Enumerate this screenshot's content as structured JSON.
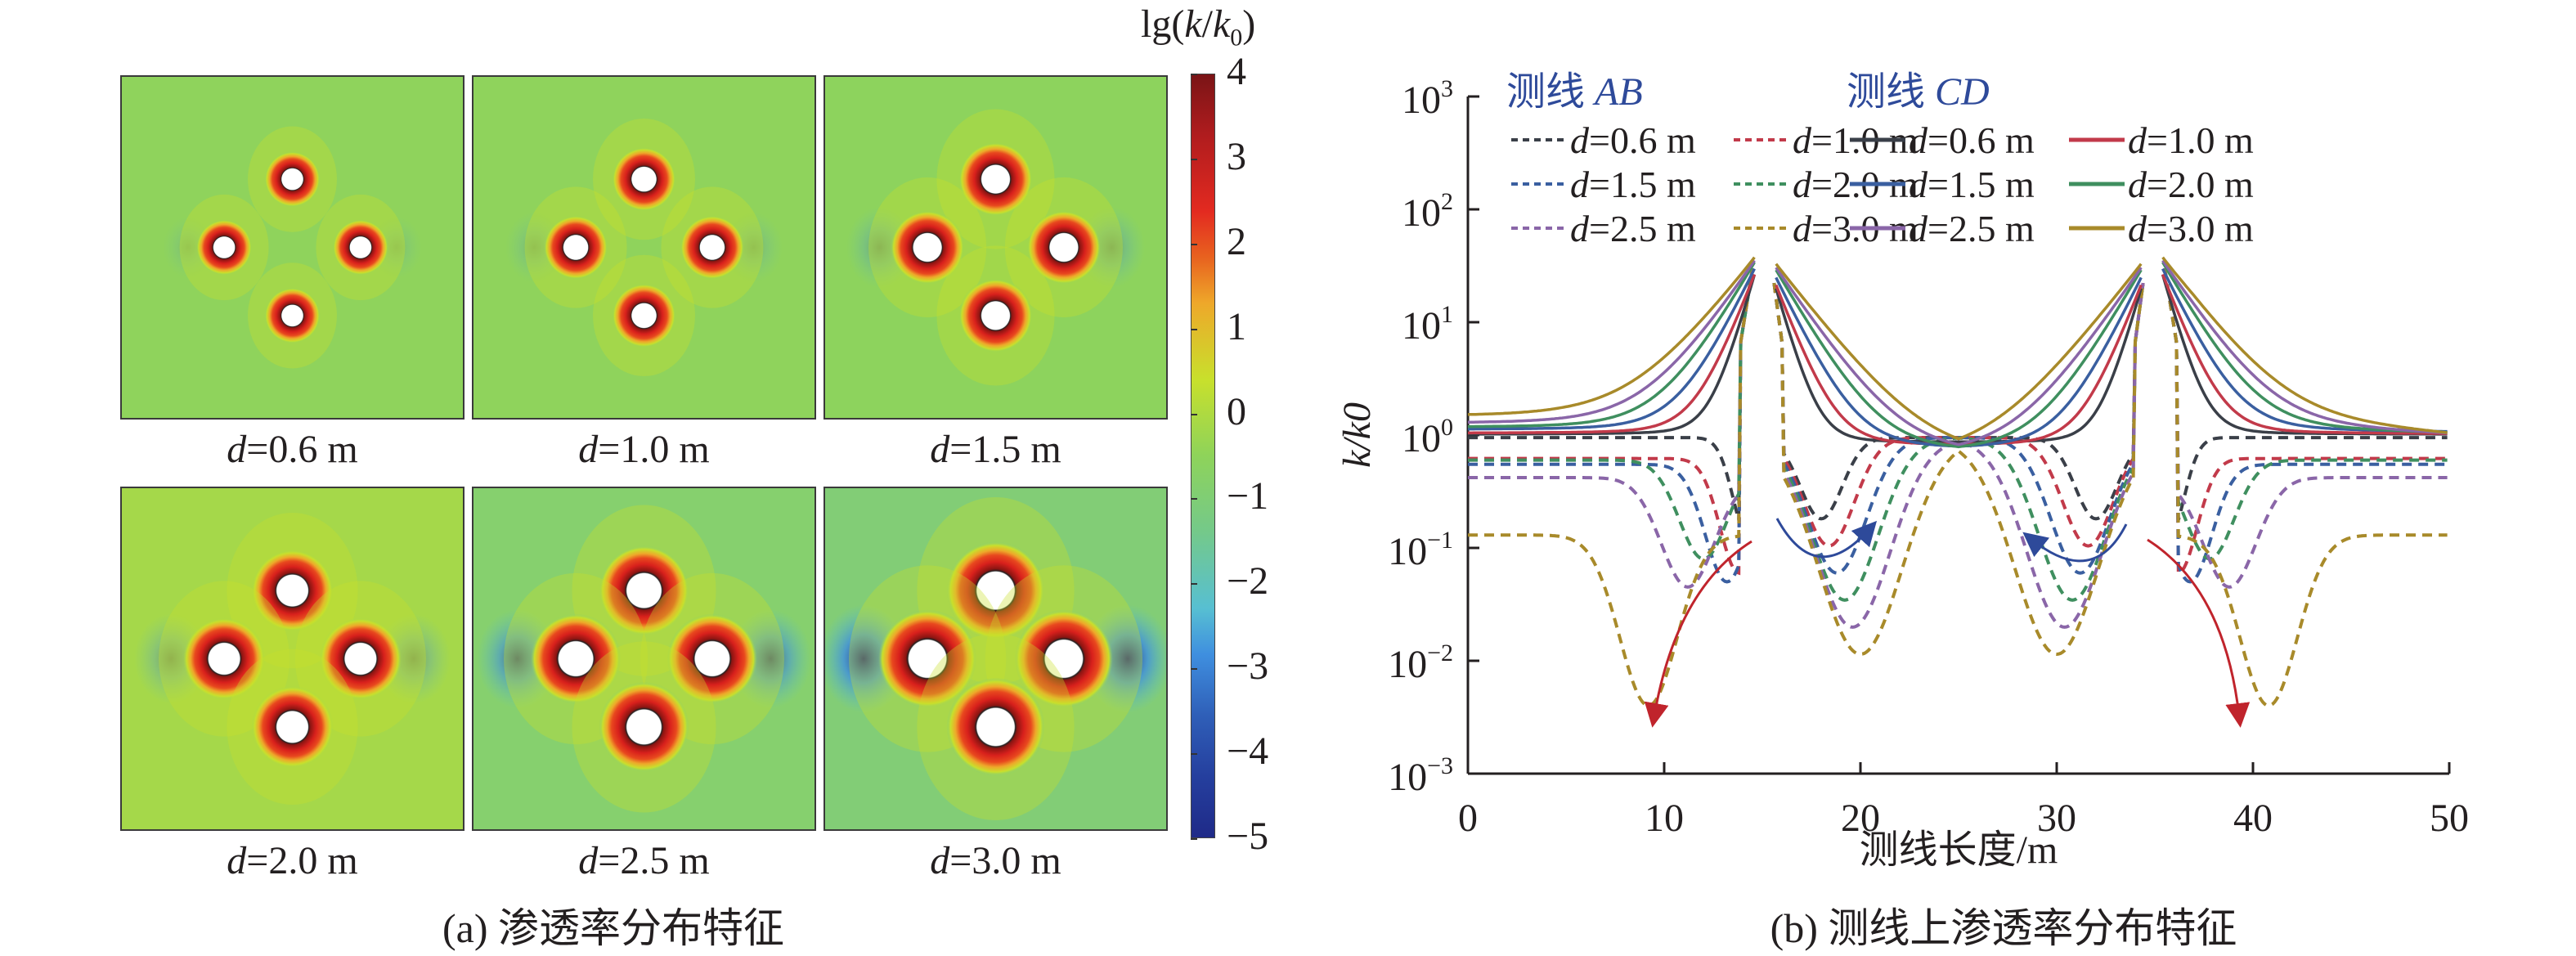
{
  "figure": {
    "panel_a": {
      "caption": "(a) 渗透率分布特征",
      "colorbar": {
        "title": "lg(k/k0)",
        "title_parts": {
          "pre": "lg(",
          "k": "k",
          "slash": "/",
          "k0": "k",
          "sub": "0",
          "post": ")"
        },
        "ticks": [
          "4",
          "3",
          "2",
          "1",
          "0",
          "−1",
          "−2",
          "−3",
          "−4",
          "−5"
        ],
        "range": [
          -5,
          4
        ],
        "colors": [
          "#1f2a88",
          "#3f8fdf",
          "#57bfd2",
          "#8ed35a",
          "#c8e02c",
          "#eea82a",
          "#e32a20",
          "#7a1416"
        ]
      },
      "maps": [
        {
          "d_label": "d",
          "value_label": "=0.6 m",
          "spacing_m": 0.6,
          "bg": "#8fd35c",
          "ring": 0.018,
          "blue_strength": 0.15
        },
        {
          "d_label": "d",
          "value_label": "=1.0 m",
          "spacing_m": 1.0,
          "bg": "#8fd35c",
          "ring": 0.028,
          "blue_strength": 0.2
        },
        {
          "d_label": "d",
          "value_label": "=1.5 m",
          "spacing_m": 1.5,
          "bg": "#8dd35d",
          "ring": 0.04,
          "blue_strength": 0.3
        },
        {
          "d_label": "d",
          "value_label": "=2.0 m",
          "spacing_m": 2.0,
          "bg": "#a5d84a",
          "ring": 0.05,
          "blue_strength": 0.35
        },
        {
          "d_label": "d",
          "value_label": "=2.5 m",
          "spacing_m": 2.5,
          "bg": "#86d06e",
          "ring": 0.06,
          "blue_strength": 0.7
        },
        {
          "d_label": "d",
          "value_label": "=3.0 m",
          "spacing_m": 3.0,
          "bg": "#82cd76",
          "ring": 0.07,
          "blue_strength": 1.0
        }
      ]
    },
    "panel_b": {
      "caption": "(b) 测线上渗透率分布特征",
      "header_ab": {
        "cn": "测线",
        "en": "AB"
      },
      "header_cd": {
        "cn": "测线",
        "en": "CD"
      }
    }
  },
  "chart_data": {
    "type": "line",
    "title": "",
    "xlabel": "测线长度/m",
    "ylabel": "k/k0",
    "xlim": [
      0,
      50
    ],
    "ylim": [
      0.001,
      1000
    ],
    "yscale": "log",
    "xticks": [
      "0",
      "10",
      "20",
      "30",
      "40",
      "50"
    ],
    "yticks": [
      {
        "base": "10",
        "exp": "3"
      },
      {
        "base": "10",
        "exp": "2"
      },
      {
        "base": "10",
        "exp": "1"
      },
      {
        "base": "10",
        "exp": "0"
      },
      {
        "base": "10",
        "exp": "−1"
      },
      {
        "base": "10",
        "exp": "−2"
      },
      {
        "base": "10",
        "exp": "−3"
      }
    ],
    "legend_position": "top",
    "legend_columns": [
      {
        "group": "AB",
        "style": "dashed",
        "items": [
          0,
          2,
          4
        ]
      },
      {
        "group": "AB",
        "style": "dashed",
        "items": [
          1,
          3,
          5
        ]
      },
      {
        "group": "CD",
        "style": "solid",
        "items": [
          0,
          2,
          4
        ]
      },
      {
        "group": "CD",
        "style": "solid",
        "items": [
          1,
          3,
          5
        ]
      }
    ],
    "spacings": [
      {
        "d": 0.6,
        "label_pre": "d",
        "label": "=0.6 m",
        "color": "#3a3f48"
      },
      {
        "d": 1.0,
        "label_pre": "d",
        "label": "=1.0 m",
        "color": "#c23a4a"
      },
      {
        "d": 1.5,
        "label_pre": "d",
        "label": "=1.5 m",
        "color": "#3a5fa0"
      },
      {
        "d": 2.0,
        "label_pre": "d",
        "label": "=2.0 m",
        "color": "#3f8f5f"
      },
      {
        "d": 2.5,
        "label_pre": "d",
        "label": "=2.5 m",
        "color": "#8a66a8"
      },
      {
        "d": 3.0,
        "label_pre": "d",
        "label": "=3.0 m",
        "color": "#a88a2a"
      }
    ],
    "series": [
      {
        "name": "AB d=0.6 m",
        "style": "dashed",
        "baseline": 0.95,
        "dip_x": [
          14.3,
          35.7
        ],
        "dip_min": 0.12,
        "peak": 30
      },
      {
        "name": "AB d=1.0 m",
        "style": "dashed",
        "baseline": 0.62,
        "dip_x": [
          13.8,
          36.2
        ],
        "dip_min": 0.06,
        "peak": 30
      },
      {
        "name": "AB d=1.5 m",
        "style": "dashed",
        "baseline": 0.55,
        "dip_x": [
          13.2,
          36.8
        ],
        "dip_min": 0.05,
        "peak": 30
      },
      {
        "name": "AB d=2.0 m",
        "style": "dashed",
        "baseline": 0.6,
        "dip_x": [
          12.0,
          37.8
        ],
        "dip_min": 0.08,
        "peak": 30
      },
      {
        "name": "AB d=2.5 m",
        "style": "dashed",
        "baseline": 0.42,
        "dip_x": [
          11.2,
          38.8
        ],
        "dip_min": 0.045,
        "peak": 30
      },
      {
        "name": "AB d=3.0 m",
        "style": "dashed",
        "baseline": 0.13,
        "dip_x": [
          9.2,
          40.8
        ],
        "dip_min": 0.004,
        "peak": 30
      },
      {
        "name": "CD d=0.6 m",
        "style": "solid",
        "baseline": 1.0,
        "peak": 25,
        "well_x": [
          15.1,
          34.9
        ]
      },
      {
        "name": "CD d=1.0 m",
        "style": "solid",
        "baseline": 1.02,
        "peak": 25,
        "well_x": [
          15.1,
          34.9
        ]
      },
      {
        "name": "CD d=1.5 m",
        "style": "solid",
        "baseline": 1.1,
        "peak": 28,
        "well_x": [
          15.1,
          34.9
        ]
      },
      {
        "name": "CD d=2.0 m",
        "style": "solid",
        "baseline": 1.15,
        "peak": 32,
        "well_x": [
          15.1,
          34.9
        ]
      },
      {
        "name": "CD d=2.5 m",
        "style": "solid",
        "baseline": 1.25,
        "peak": 33,
        "well_x": [
          15.1,
          34.9
        ]
      },
      {
        "name": "CD d=3.0 m",
        "style": "solid",
        "baseline": 1.45,
        "peak": 35,
        "well_x": [
          15.1,
          34.9
        ]
      }
    ],
    "annotations": [
      {
        "type": "arrow",
        "color": "#c0242c",
        "description": "dip deepens with spacing (left)"
      },
      {
        "type": "arrow",
        "color": "#2e4a9a",
        "description": "dip shifts with spacing (center-left)"
      },
      {
        "type": "arrow",
        "color": "#2e4a9a",
        "description": "dip shifts with spacing (center-right)"
      },
      {
        "type": "arrow",
        "color": "#c0242c",
        "description": "dip deepens with spacing (right)"
      }
    ]
  }
}
